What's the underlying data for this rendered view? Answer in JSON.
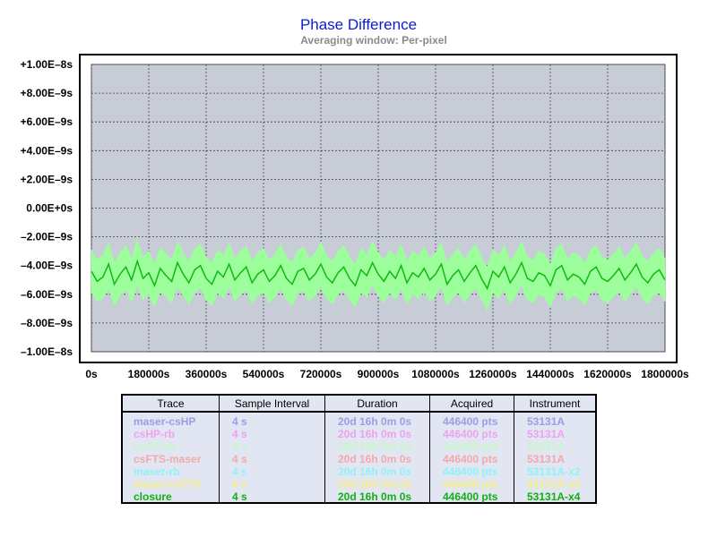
{
  "chart_data": {
    "type": "line",
    "title": "Phase Difference",
    "subtitle": "Averaging window: Per-pixel",
    "xlabel": "",
    "ylabel": "",
    "xlim": [
      0,
      1800000
    ],
    "ylim": [
      -1e-08,
      1e-08
    ],
    "x_ticks": [
      "0s",
      "180000s",
      "360000s",
      "540000s",
      "720000s",
      "900000s",
      "1080000s",
      "1260000s",
      "1440000s",
      "1620000s",
      "1800000s"
    ],
    "y_ticks": [
      {
        "value": 1e-08,
        "label": "+1.00E–8s"
      },
      {
        "value": 8e-09,
        "label": "+8.00E–9s"
      },
      {
        "value": 6e-09,
        "label": "+6.00E–9s"
      },
      {
        "value": 4e-09,
        "label": "+4.00E–9s"
      },
      {
        "value": 2e-09,
        "label": "+2.00E–9s"
      },
      {
        "value": 0,
        "label": "0.00E+0s",
        "color": "#1a2ed4"
      },
      {
        "value": -2e-09,
        "label": "–2.00E–9s"
      },
      {
        "value": -4e-09,
        "label": "–4.00E–9s"
      },
      {
        "value": -6e-09,
        "label": "–6.00E–9s"
      },
      {
        "value": -8e-09,
        "label": "–8.00E–9s"
      },
      {
        "value": -1e-08,
        "label": "–1.00E–8s"
      }
    ],
    "grid": true,
    "plot_background": "#c8ccd7",
    "series": [
      {
        "name": "closure",
        "color": "#0fb90f",
        "band_color": "#9cff9c",
        "x": [
          0,
          18000,
          36000,
          54000,
          72000,
          90000,
          108000,
          126000,
          144000,
          162000,
          180000,
          198000,
          216000,
          234000,
          252000,
          270000,
          288000,
          306000,
          324000,
          342000,
          360000,
          378000,
          396000,
          414000,
          432000,
          450000,
          468000,
          486000,
          504000,
          522000,
          540000,
          558000,
          576000,
          594000,
          612000,
          630000,
          648000,
          666000,
          684000,
          702000,
          720000,
          738000,
          756000,
          774000,
          792000,
          810000,
          828000,
          846000,
          864000,
          882000,
          900000,
          918000,
          936000,
          954000,
          972000,
          990000,
          1008000,
          1026000,
          1044000,
          1062000,
          1080000,
          1098000,
          1116000,
          1134000,
          1152000,
          1170000,
          1188000,
          1206000,
          1224000,
          1242000,
          1260000,
          1278000,
          1296000,
          1314000,
          1332000,
          1350000,
          1368000,
          1386000,
          1404000,
          1422000,
          1440000,
          1458000,
          1476000,
          1494000,
          1512000,
          1530000,
          1548000,
          1566000,
          1584000,
          1602000,
          1620000,
          1638000,
          1656000,
          1674000,
          1692000,
          1710000,
          1728000,
          1746000,
          1764000,
          1782000,
          1800000
        ],
        "mean": [
          -4.4e-09,
          -5.1e-09,
          -4.8e-09,
          -3.9e-09,
          -5.3e-09,
          -4.6e-09,
          -4.1e-09,
          -5e-09,
          -3.7e-09,
          -4.9e-09,
          -4.5e-09,
          -5.4e-09,
          -4.2e-09,
          -4.7e-09,
          -5.1e-09,
          -3.8e-09,
          -4.6e-09,
          -5.2e-09,
          -4.3e-09,
          -4e-09,
          -4.9e-09,
          -5.3e-09,
          -4.4e-09,
          -4.8e-09,
          -3.9e-09,
          -5e-09,
          -4.5e-09,
          -4.1e-09,
          -5.2e-09,
          -4.6e-09,
          -4.3e-09,
          -5.1e-09,
          -4.7e-09,
          -4e-09,
          -4.9e-09,
          -5.3e-09,
          -4.4e-09,
          -4.2e-09,
          -5e-09,
          -4.6e-09,
          -3.9e-09,
          -4.8e-09,
          -5.2e-09,
          -4.5e-09,
          -4.1e-09,
          -4.9e-09,
          -5.4e-09,
          -4.3e-09,
          -4.7e-09,
          -3.8e-09,
          -4.6e-09,
          -5.1e-09,
          -4.4e-09,
          -4.9e-09,
          -4e-09,
          -5.2e-09,
          -4.5e-09,
          -4.8e-09,
          -4.2e-09,
          -5e-09,
          -4.6e-09,
          -3.9e-09,
          -5.3e-09,
          -4.7e-09,
          -4.3e-09,
          -5.1e-09,
          -4.5e-09,
          -4e-09,
          -4.9e-09,
          -5.6e-09,
          -4.4e-09,
          -4.8e-09,
          -4.1e-09,
          -5.2e-09,
          -4.6e-09,
          -3.8e-09,
          -4.9e-09,
          -5.1e-09,
          -4.5e-09,
          -4.7e-09,
          -5.4e-09,
          -4.3e-09,
          -4e-09,
          -5e-09,
          -4.6e-09,
          -4.8e-09,
          -5.3e-09,
          -4.4e-09,
          -4.1e-09,
          -4.9e-09,
          -5.1e-09,
          -4.7e-09,
          -4.2e-09,
          -5e-09,
          -4.5e-09,
          -3.9e-09,
          -4.8e-09,
          -5.2e-09,
          -4.6e-09,
          -4.3e-09,
          -5e-09
        ],
        "min": [
          -5.9e-09,
          -6.5e-09,
          -6.3e-09,
          -5.6e-09,
          -6.8e-09,
          -6.1e-09,
          -5.7e-09,
          -6.6e-09,
          -5.4e-09,
          -6.4e-09,
          -6e-09,
          -6.9e-09,
          -5.8e-09,
          -6.2e-09,
          -6.6e-09,
          -5.5e-09,
          -6.1e-09,
          -6.7e-09,
          -5.9e-09,
          -5.6e-09,
          -6.4e-09,
          -6.8e-09,
          -5.9e-09,
          -6.3e-09,
          -5.5e-09,
          -6.5e-09,
          -6e-09,
          -5.7e-09,
          -6.7e-09,
          -6.1e-09,
          -5.9e-09,
          -6.6e-09,
          -6.2e-09,
          -5.6e-09,
          -6.4e-09,
          -6.8e-09,
          -5.9e-09,
          -5.8e-09,
          -6.5e-09,
          -6.1e-09,
          -5.5e-09,
          -6.3e-09,
          -6.7e-09,
          -6e-09,
          -5.7e-09,
          -6.4e-09,
          -6.9e-09,
          -5.9e-09,
          -6.2e-09,
          -5.4e-09,
          -6.1e-09,
          -6.6e-09,
          -5.9e-09,
          -6.4e-09,
          -5.6e-09,
          -6.7e-09,
          -6e-09,
          -6.3e-09,
          -5.8e-09,
          -6.5e-09,
          -6.1e-09,
          -5.5e-09,
          -6.8e-09,
          -6.2e-09,
          -5.9e-09,
          -6.6e-09,
          -6e-09,
          -5.6e-09,
          -6.4e-09,
          -7.1e-09,
          -5.9e-09,
          -6.3e-09,
          -5.7e-09,
          -6.7e-09,
          -6.1e-09,
          -5.4e-09,
          -6.4e-09,
          -6.6e-09,
          -6e-09,
          -6.2e-09,
          -6.9e-09,
          -5.9e-09,
          -5.6e-09,
          -6.5e-09,
          -6.1e-09,
          -6.3e-09,
          -6.8e-09,
          -5.9e-09,
          -5.7e-09,
          -6.4e-09,
          -6.6e-09,
          -6.2e-09,
          -5.8e-09,
          -6.5e-09,
          -6e-09,
          -5.5e-09,
          -6.3e-09,
          -6.7e-09,
          -6.1e-09,
          -5.9e-09,
          -6.5e-09
        ],
        "max": [
          -2.9e-09,
          -3.6e-09,
          -3.3e-09,
          -2.4e-09,
          -3.8e-09,
          -3.1e-09,
          -2.6e-09,
          -3.5e-09,
          -2.2e-09,
          -3.4e-09,
          -3e-09,
          -3.9e-09,
          -2.7e-09,
          -3.2e-09,
          -3.6e-09,
          -2.3e-09,
          -3.1e-09,
          -3.7e-09,
          -2.8e-09,
          -2.5e-09,
          -3.4e-09,
          -3.8e-09,
          -2.9e-09,
          -3.3e-09,
          -2.4e-09,
          -3.5e-09,
          -3e-09,
          -2.6e-09,
          -3.7e-09,
          -3.1e-09,
          -2.8e-09,
          -3.6e-09,
          -3.2e-09,
          -2.5e-09,
          -3.4e-09,
          -3.8e-09,
          -2.9e-09,
          -2.7e-09,
          -3.5e-09,
          -3.1e-09,
          -2.4e-09,
          -3.3e-09,
          -3.7e-09,
          -3e-09,
          -2.6e-09,
          -3.4e-09,
          -3.9e-09,
          -2.8e-09,
          -3.2e-09,
          -2.3e-09,
          -3.1e-09,
          -3.6e-09,
          -2.9e-09,
          -3.4e-09,
          -2.5e-09,
          -3.7e-09,
          -3e-09,
          -3.3e-09,
          -2.7e-09,
          -3.5e-09,
          -3.1e-09,
          -2.4e-09,
          -3.8e-09,
          -3.2e-09,
          -2.8e-09,
          -3.6e-09,
          -3e-09,
          -2.5e-09,
          -3.4e-09,
          -4.1e-09,
          -2.9e-09,
          -3.3e-09,
          -2.6e-09,
          -3.7e-09,
          -3.1e-09,
          -2.3e-09,
          -3.4e-09,
          -3.6e-09,
          -3e-09,
          -3.2e-09,
          -3.9e-09,
          -2.8e-09,
          -2.5e-09,
          -3.5e-09,
          -3.1e-09,
          -3.3e-09,
          -3.8e-09,
          -2.9e-09,
          -2.6e-09,
          -3.4e-09,
          -3.6e-09,
          -3.2e-09,
          -2.7e-09,
          -3.5e-09,
          -3e-09,
          -2.4e-09,
          -3.3e-09,
          -3.7e-09,
          -3.1e-09,
          -2.8e-09,
          -3.5e-09
        ]
      }
    ]
  },
  "legend_table": {
    "headers": [
      "Trace",
      "Sample Interval",
      "Duration",
      "Acquired",
      "Instrument"
    ],
    "rows": [
      {
        "trace": "maser-csHP",
        "interval": "4 s",
        "duration": "20d 16h 0m 0s",
        "acquired": "446400 pts",
        "instrument": "53131A",
        "color": "#9d9de6"
      },
      {
        "trace": "csHP-rb",
        "interval": "4 s",
        "duration": "20d 16h 0m 0s",
        "acquired": "446400 pts",
        "instrument": "53131A",
        "color": "#f0a0f0"
      },
      {
        "trace": "csCS-rb",
        "interval": "4 s",
        "duration": "20d 16h 0m 0s",
        "acquired": "446400 pts",
        "instrument": "53131A",
        "color": "#c6f7c6"
      },
      {
        "trace": "csFTS-maser",
        "interval": "4 s",
        "duration": "20d 16h 0m 0s",
        "acquired": "446400 pts",
        "instrument": "53131A",
        "color": "#f3a9a9"
      },
      {
        "trace": "maser-rb",
        "interval": "4 s",
        "duration": "20d 16h 0m 0s",
        "acquired": "446400 pts",
        "instrument": "53131A-x2",
        "color": "#8cf4f4"
      },
      {
        "trace": "maser-csFTS",
        "interval": "4 s",
        "duration": "20d 16h 0m 0s",
        "acquired": "446400 pts",
        "instrument": "53131A-x3",
        "color": "#f4ef8c"
      },
      {
        "trace": "closure",
        "interval": "4 s",
        "duration": "20d 16h 0m 0s",
        "acquired": "446400 pts",
        "instrument": "53131A-x4",
        "color": "#12b012"
      }
    ]
  }
}
